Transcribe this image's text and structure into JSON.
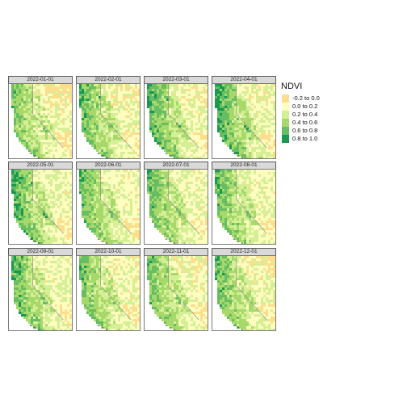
{
  "legend": {
    "title": "NDVI",
    "classes": [
      {
        "label": "-0.2 to 0.0",
        "color": "#fedd8d"
      },
      {
        "label": "0.0 to 0.2",
        "color": "#fdfec0"
      },
      {
        "label": "0.2 to 0.4",
        "color": "#d5ef97"
      },
      {
        "label": "0.4 to 0.6",
        "color": "#a6d96a"
      },
      {
        "label": "0.6 to 0.8",
        "color": "#66bd63"
      },
      {
        "label": "0.8 to 1.0",
        "color": "#1a9850"
      }
    ]
  },
  "panels": [
    {
      "date": "2022-01-01",
      "greenness": 0.35,
      "bare": 0.75
    },
    {
      "date": "2022-02-01",
      "greenness": 0.45,
      "bare": 0.55
    },
    {
      "date": "2022-03-01",
      "greenness": 0.55,
      "bare": 0.4
    },
    {
      "date": "2022-04-01",
      "greenness": 0.6,
      "bare": 0.2
    },
    {
      "date": "2022-05-01",
      "greenness": 0.55,
      "bare": 0.0
    },
    {
      "date": "2022-06-01",
      "greenness": 0.45,
      "bare": 0.0
    },
    {
      "date": "2022-07-01",
      "greenness": 0.45,
      "bare": 0.0
    },
    {
      "date": "2022-08-01",
      "greenness": 0.45,
      "bare": 0.0
    },
    {
      "date": "2022-09-01",
      "greenness": 0.5,
      "bare": 0.0
    },
    {
      "date": "2022-10-01",
      "greenness": 0.4,
      "bare": 0.1
    },
    {
      "date": "2022-11-01",
      "greenness": 0.4,
      "bare": 0.4
    },
    {
      "date": "2022-12-01",
      "greenness": 0.45,
      "bare": 0.75
    }
  ],
  "map_colors": {
    "border": "#777777",
    "background": "#ffffff"
  }
}
